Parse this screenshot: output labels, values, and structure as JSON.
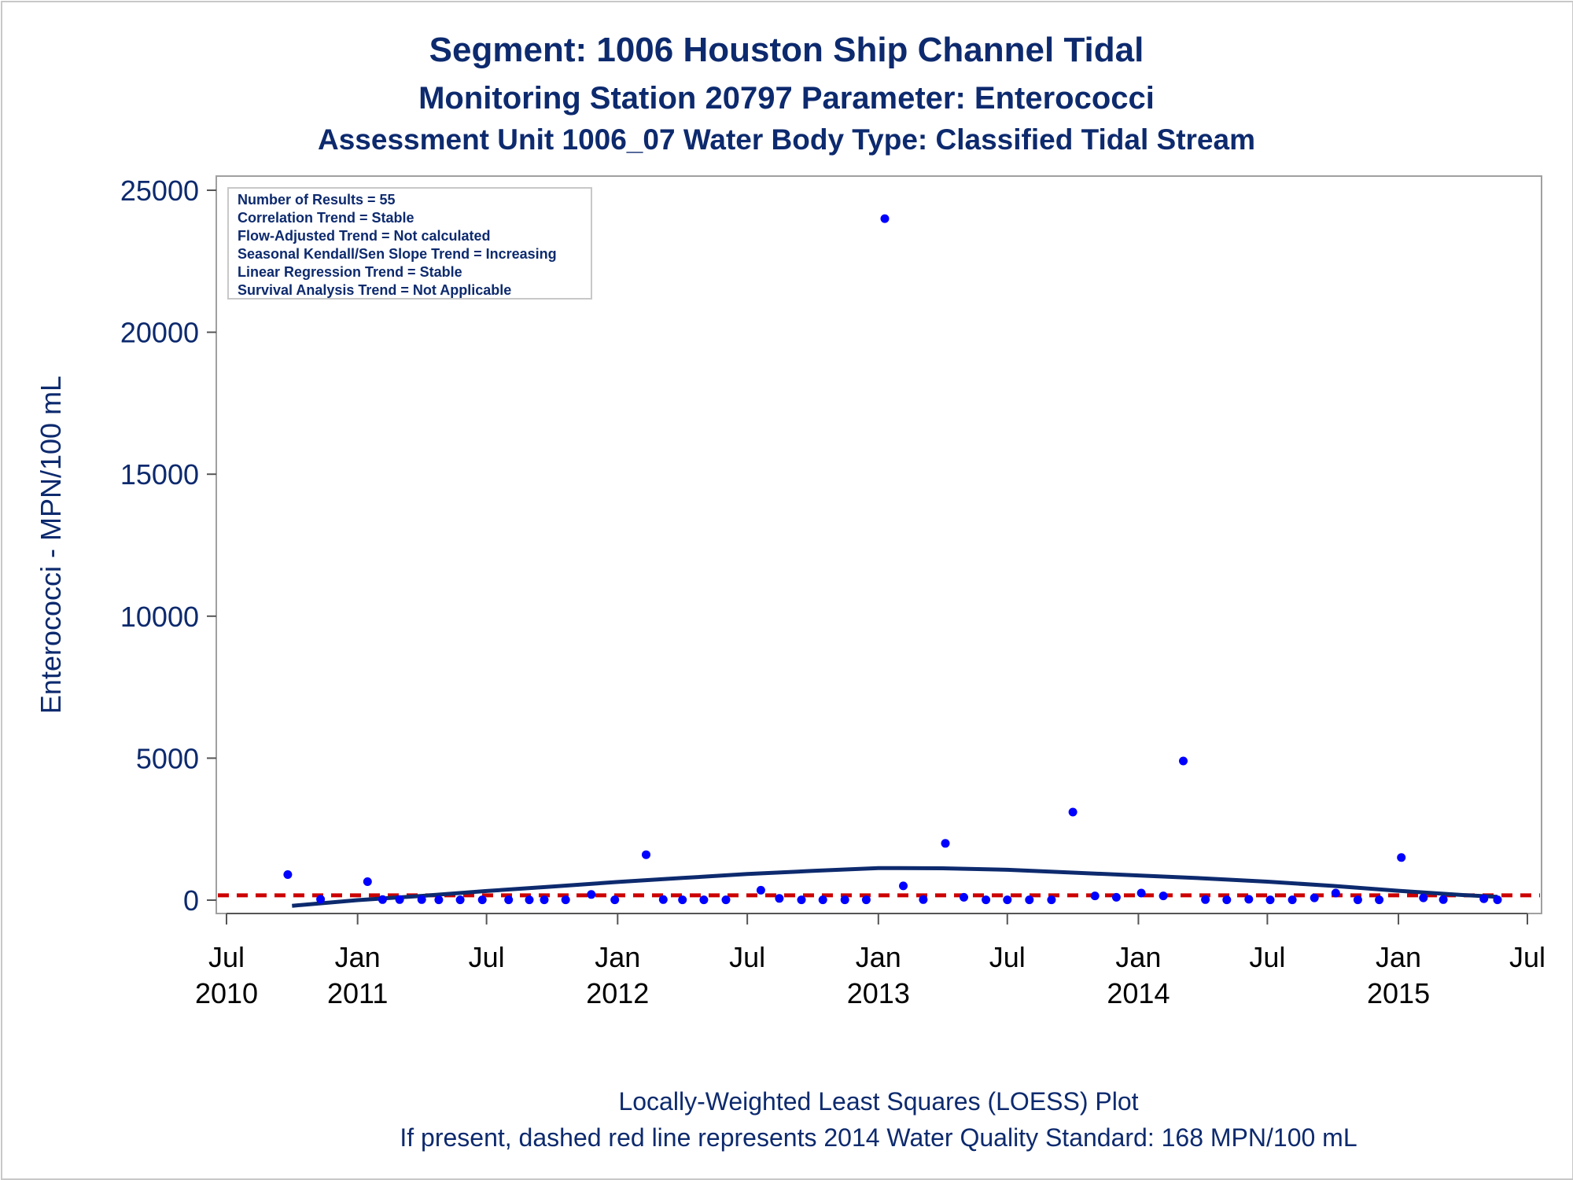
{
  "chart_data": {
    "type": "scatter",
    "title": "Segment: 1006  Houston Ship Channel Tidal",
    "subtitle": "Monitoring Station 20797 Parameter: Enterococci",
    "subtitle2": "Assessment Unit 1006_07   Water Body Type: Classified Tidal Stream",
    "ylabel": "Enterococci - MPN/100 mL",
    "footnote1": "Locally-Weighted Least Squares (LOESS) Plot",
    "footnote2": "If present, dashed red line represents 2014 Water Quality Standard: 168 MPN/100 mL",
    "ylim": [
      -500,
      25000
    ],
    "xlim": [
      "2010-07-01",
      "2015-07-01"
    ],
    "yticks": [
      0,
      5000,
      10000,
      15000,
      20000,
      25000
    ],
    "xticks": [
      {
        "date": "2010-07-01",
        "line1": "Jul",
        "line2": "2010"
      },
      {
        "date": "2011-01-01",
        "line1": "Jan",
        "line2": "2011"
      },
      {
        "date": "2011-07-01",
        "line1": "Jul",
        "line2": ""
      },
      {
        "date": "2012-01-01",
        "line1": "Jan",
        "line2": "2012"
      },
      {
        "date": "2012-07-01",
        "line1": "Jul",
        "line2": ""
      },
      {
        "date": "2013-01-01",
        "line1": "Jan",
        "line2": "2013"
      },
      {
        "date": "2013-07-01",
        "line1": "Jul",
        "line2": ""
      },
      {
        "date": "2014-01-01",
        "line1": "Jan",
        "line2": "2014"
      },
      {
        "date": "2014-07-01",
        "line1": "Jul",
        "line2": ""
      },
      {
        "date": "2015-01-01",
        "line1": "Jan",
        "line2": "2015"
      },
      {
        "date": "2015-07-01",
        "line1": "Jul",
        "line2": ""
      }
    ],
    "grid": false,
    "stats_box": {
      "placement": "top-left",
      "lines": [
        "Number of Results = 55",
        "Correlation Trend = Stable",
        "Flow-Adjusted Trend = Not calculated",
        "Seasonal Kendall/Sen Slope Trend = Increasing",
        "Linear Regression Trend = Stable",
        "Survival Analysis Trend = Not Applicable"
      ]
    },
    "standard": {
      "value": 168,
      "color": "#cc0000"
    },
    "point_color": "#0000ff",
    "loess_color": "#0d2a6e",
    "points": [
      {
        "x": "2010-09-25",
        "y": 900
      },
      {
        "x": "2010-11-10",
        "y": 30
      },
      {
        "x": "2011-01-15",
        "y": 650
      },
      {
        "x": "2011-02-05",
        "y": 20
      },
      {
        "x": "2011-03-01",
        "y": 20
      },
      {
        "x": "2011-04-01",
        "y": 20
      },
      {
        "x": "2011-04-25",
        "y": 10
      },
      {
        "x": "2011-05-25",
        "y": 10
      },
      {
        "x": "2011-06-25",
        "y": 10
      },
      {
        "x": "2011-08-01",
        "y": 10
      },
      {
        "x": "2011-08-30",
        "y": 10
      },
      {
        "x": "2011-09-20",
        "y": 10
      },
      {
        "x": "2011-10-20",
        "y": 10
      },
      {
        "x": "2011-11-25",
        "y": 200
      },
      {
        "x": "2011-12-28",
        "y": 10
      },
      {
        "x": "2012-02-10",
        "y": 1600
      },
      {
        "x": "2012-03-05",
        "y": 20
      },
      {
        "x": "2012-04-01",
        "y": 10
      },
      {
        "x": "2012-05-01",
        "y": 10
      },
      {
        "x": "2012-06-01",
        "y": 10
      },
      {
        "x": "2012-07-20",
        "y": 350
      },
      {
        "x": "2012-08-15",
        "y": 60
      },
      {
        "x": "2012-09-15",
        "y": 10
      },
      {
        "x": "2012-10-15",
        "y": 10
      },
      {
        "x": "2012-11-15",
        "y": 10
      },
      {
        "x": "2012-12-15",
        "y": 10
      },
      {
        "x": "2013-01-10",
        "y": 24000
      },
      {
        "x": "2013-02-05",
        "y": 500
      },
      {
        "x": "2013-03-05",
        "y": 20
      },
      {
        "x": "2013-04-05",
        "y": 2000
      },
      {
        "x": "2013-05-01",
        "y": 100
      },
      {
        "x": "2013-06-01",
        "y": 10
      },
      {
        "x": "2013-07-01",
        "y": 10
      },
      {
        "x": "2013-08-01",
        "y": 10
      },
      {
        "x": "2013-09-01",
        "y": 10
      },
      {
        "x": "2013-10-01",
        "y": 3100
      },
      {
        "x": "2013-11-01",
        "y": 150
      },
      {
        "x": "2013-12-01",
        "y": 100
      },
      {
        "x": "2014-01-05",
        "y": 250
      },
      {
        "x": "2014-02-05",
        "y": 150
      },
      {
        "x": "2014-03-05",
        "y": 4900
      },
      {
        "x": "2014-04-05",
        "y": 20
      },
      {
        "x": "2014-05-05",
        "y": 10
      },
      {
        "x": "2014-06-05",
        "y": 30
      },
      {
        "x": "2014-07-05",
        "y": 10
      },
      {
        "x": "2014-08-05",
        "y": 10
      },
      {
        "x": "2014-09-05",
        "y": 80
      },
      {
        "x": "2014-10-05",
        "y": 250
      },
      {
        "x": "2014-11-05",
        "y": 10
      },
      {
        "x": "2014-12-05",
        "y": 10
      },
      {
        "x": "2015-01-05",
        "y": 1500
      },
      {
        "x": "2015-02-05",
        "y": 80
      },
      {
        "x": "2015-03-05",
        "y": 20
      },
      {
        "x": "2015-05-01",
        "y": 50
      },
      {
        "x": "2015-05-20",
        "y": 10
      }
    ],
    "loess": [
      {
        "x": "2010-10-01",
        "y": -200
      },
      {
        "x": "2011-01-01",
        "y": 0
      },
      {
        "x": "2011-04-01",
        "y": 150
      },
      {
        "x": "2011-07-01",
        "y": 320
      },
      {
        "x": "2011-10-01",
        "y": 480
      },
      {
        "x": "2012-01-01",
        "y": 640
      },
      {
        "x": "2012-04-01",
        "y": 780
      },
      {
        "x": "2012-07-01",
        "y": 920
      },
      {
        "x": "2012-10-01",
        "y": 1030
      },
      {
        "x": "2013-01-01",
        "y": 1130
      },
      {
        "x": "2013-04-01",
        "y": 1120
      },
      {
        "x": "2013-07-01",
        "y": 1070
      },
      {
        "x": "2013-10-01",
        "y": 970
      },
      {
        "x": "2014-01-01",
        "y": 870
      },
      {
        "x": "2014-04-01",
        "y": 770
      },
      {
        "x": "2014-07-01",
        "y": 650
      },
      {
        "x": "2014-10-01",
        "y": 500
      },
      {
        "x": "2015-01-01",
        "y": 330
      },
      {
        "x": "2015-04-01",
        "y": 180
      },
      {
        "x": "2015-05-20",
        "y": 120
      }
    ]
  }
}
